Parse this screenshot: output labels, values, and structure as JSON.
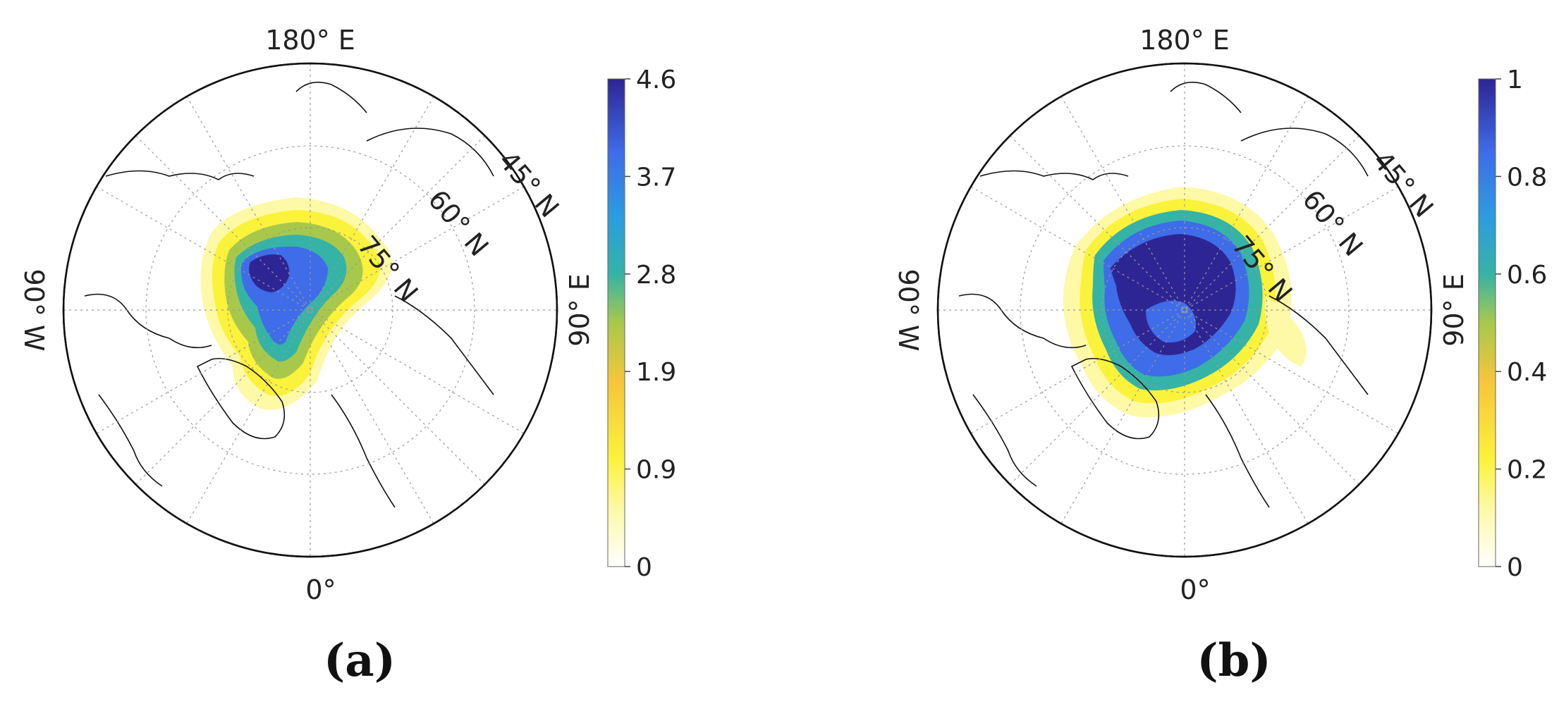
{
  "panels": [
    {
      "id": "a",
      "label": "(a)",
      "top_label": "180° E",
      "bottom_label": "0°",
      "left_label": "90° W",
      "right_label": "90° E",
      "lat_labels": [
        "45° N",
        "60° N",
        "75° N"
      ],
      "colorbar": {
        "ticks": [
          "4.6",
          "3.7",
          "2.8",
          "1.9",
          "0.9",
          "0"
        ],
        "min": 0,
        "max": 4.6
      },
      "field_peak_fraction": 1.0
    },
    {
      "id": "b",
      "label": "(b)",
      "top_label": "180° E",
      "bottom_label": "0°",
      "left_label": "90° W",
      "right_label": "90° E",
      "lat_labels": [
        "45° N",
        "60° N",
        "75° N"
      ],
      "colorbar": {
        "ticks": [
          "1",
          "0.8",
          "0.6",
          "0.4",
          "0.2",
          "0"
        ],
        "min": 0,
        "max": 1
      },
      "field_peak_fraction": 1.0
    }
  ],
  "colormap": [
    "#ffffff",
    "#fdf9a6",
    "#fbf23c",
    "#f6c53b",
    "#a8c84c",
    "#35b3a7",
    "#2b9ce0",
    "#3f6ce8",
    "#3e3ec9",
    "#2e2594"
  ]
}
